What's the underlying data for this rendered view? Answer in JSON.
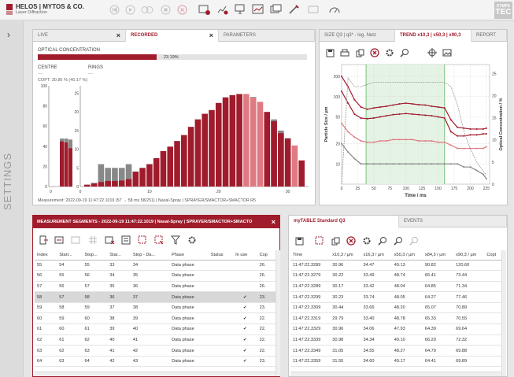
{
  "app": {
    "brand": "HELOS | MYTOS & CO.",
    "subtitle": "Laser Diffraction",
    "corner_top": "SYMPA",
    "corner_big": "TEC"
  },
  "sidebar": {
    "label": "SETTINGS"
  },
  "left_panel": {
    "tabs": [
      {
        "label": "LIVE"
      },
      {
        "label": "RECORDED"
      },
      {
        "label": "PARAMETERS"
      }
    ],
    "optical_label": "OPTICAL CONCENTRATION",
    "optical_value": "23.19%",
    "optical_fraction": 0.2319,
    "centre_label": "CENTRE",
    "centre_value": "---",
    "rings_label": "RINGS",
    "rings_value": "---",
    "copt_label": "COPT: 30.86 % (40.17 %)",
    "measurement": "Measurement: 2022-09-19 11:47:22.1019 (57 → 58 ms 58/251) | Nasal-Spray | SPRAYER/SMACTOR+SMACTOR R5"
  },
  "detector_chart": {
    "left": {
      "yticks": [
        "100",
        "80",
        "60",
        "40",
        "20",
        "0"
      ],
      "xticks": [
        "0"
      ]
    },
    "main": {
      "yticks": [
        "25",
        "20",
        "15",
        "10",
        "5",
        "0"
      ],
      "xticks": [
        "0",
        "10",
        "20",
        "30"
      ]
    }
  },
  "chart_data": [
    {
      "type": "bar",
      "name": "ring-signal",
      "categories": [
        1,
        2,
        3,
        4,
        5,
        6,
        7,
        8,
        9,
        10,
        11,
        12,
        13,
        14,
        15,
        16,
        17,
        18,
        19,
        20,
        21,
        22,
        23,
        24,
        25,
        26,
        27,
        28,
        29,
        30,
        31,
        32
      ],
      "values": [
        0.5,
        0.8,
        1.2,
        1.5,
        1.5,
        1.6,
        2,
        4,
        5,
        6,
        7.6,
        9.5,
        10.7,
        12.2,
        13.8,
        16,
        18,
        19.5,
        20.5,
        22.4,
        23.9,
        24.5,
        24.8,
        24.8,
        23.8,
        22.7,
        20,
        17.5,
        14.3,
        12.8,
        11,
        7
      ],
      "grey_values": [
        0.5,
        1,
        6,
        5,
        5,
        5,
        6,
        4,
        5,
        6,
        6,
        7,
        9,
        10,
        12,
        14,
        16,
        18,
        20,
        21,
        22,
        23,
        24,
        24,
        24,
        22,
        20,
        18,
        15,
        13,
        11,
        7
      ],
      "ylim": [
        0,
        27
      ],
      "xlim": [
        0,
        33
      ]
    },
    {
      "type": "bar",
      "name": "centre-signal",
      "categories": [
        1,
        2,
        3
      ],
      "values": [
        47,
        46,
        40
      ],
      "grey_values": [
        50,
        50,
        49
      ],
      "ylim": [
        0,
        105
      ]
    },
    {
      "type": "line",
      "name": "trend",
      "xlabel": "Time / ms",
      "ylabel": "Particle Size / µm",
      "y2label": "Optical Concentration / %",
      "xticks": [
        0,
        25,
        50,
        75,
        100,
        125,
        150,
        175,
        200,
        225
      ],
      "yticks": [
        200,
        100,
        50,
        20,
        10
      ],
      "y2ticks": [
        0,
        5,
        10,
        15,
        20,
        25
      ],
      "x": [
        0,
        10,
        20,
        30,
        40,
        50,
        60,
        70,
        80,
        90,
        100,
        110,
        120,
        130,
        140,
        150,
        160,
        170,
        180,
        190,
        200,
        210,
        220,
        225
      ],
      "series": [
        {
          "values": [
            200,
            140,
            90,
            70,
            65,
            68,
            70,
            72,
            75,
            78,
            80,
            78,
            76,
            75,
            72,
            70,
            68,
            45,
            35,
            34,
            33,
            33,
            33,
            34
          ]
        },
        {
          "values": [
            120,
            80,
            55,
            48,
            47,
            48,
            50,
            52,
            54,
            55,
            56,
            55,
            54,
            53,
            52,
            50,
            48,
            30,
            26,
            26,
            27,
            27,
            28,
            28
          ]
        },
        {
          "values": [
            40,
            30,
            25,
            22,
            21,
            21,
            22,
            22,
            23,
            23,
            23,
            23,
            22,
            22,
            22,
            21,
            21,
            19,
            17,
            17,
            17,
            17,
            17,
            18
          ]
        },
        {
          "values": [
            20,
            15,
            12,
            10,
            10,
            10,
            10,
            10,
            10,
            10,
            10,
            10,
            10,
            10,
            10,
            10,
            10,
            10,
            10,
            9,
            9,
            8,
            7,
            6
          ]
        }
      ],
      "series_y2": [
        {
          "values": [
            0,
            24,
            22,
            22,
            22.5,
            23,
            23,
            23,
            23,
            23,
            23,
            23,
            23,
            23,
            23,
            23,
            23,
            22,
            18,
            12,
            8,
            5,
            3,
            2
          ]
        }
      ],
      "xlim": [
        0,
        230
      ]
    }
  ],
  "right_top": {
    "tabs": [
      {
        "label": "SIZE Q3 | q3* - log. Netz"
      },
      {
        "label": "TREND x10,3 | x50,3 | x90,3"
      },
      {
        "label": "REPORT"
      }
    ]
  },
  "segments": {
    "title": "MEASUREMENT SEGMENTS - 2022-09-19 11:47:22.1019 | Nasal-Spray | SPRAYER/SMACTOR+SMACTO",
    "columns": [
      "Index",
      "Start...",
      "Stop...",
      "Star...",
      "Stop - Da...",
      "Phase",
      "Status",
      "In use",
      "Cop"
    ],
    "rows": [
      [
        "55",
        "54",
        "55",
        "33",
        "34",
        "Data phase",
        "",
        "",
        "26."
      ],
      [
        "56",
        "55",
        "56",
        "34",
        "35",
        "Data phase",
        "",
        "",
        "26."
      ],
      [
        "57",
        "56",
        "57",
        "35",
        "36",
        "Data phase",
        "",
        "",
        "26."
      ],
      [
        "58",
        "57",
        "58",
        "36",
        "37",
        "Data phase",
        "",
        "✔",
        "23."
      ],
      [
        "59",
        "58",
        "59",
        "37",
        "38",
        "Data phase",
        "",
        "✔",
        "23."
      ],
      [
        "60",
        "59",
        "60",
        "38",
        "39",
        "Data phase",
        "",
        "✔",
        "22."
      ],
      [
        "61",
        "60",
        "61",
        "39",
        "40",
        "Data phase",
        "",
        "✔",
        "22."
      ],
      [
        "62",
        "61",
        "62",
        "40",
        "41",
        "Data phase",
        "",
        "✔",
        "22."
      ],
      [
        "63",
        "62",
        "63",
        "41",
        "42",
        "Data phase",
        "",
        "✔",
        "22."
      ],
      [
        "64",
        "63",
        "64",
        "42",
        "43",
        "Data phase",
        "",
        "✔",
        "23."
      ]
    ]
  },
  "mytable": {
    "tabs": [
      {
        "label": "myTABLE Standard Q3"
      },
      {
        "label": "EVENTS"
      }
    ],
    "columns": [
      "Time",
      "x10,3 / µm",
      "x16,3 / µm",
      "x50,3 / µm",
      "x84,3 / µm",
      "x90,3 / µm",
      "Copt"
    ],
    "rows": [
      [
        "11:47:22.3289",
        "30.96",
        "34.47",
        "49.13",
        "90.82",
        "120.60"
      ],
      [
        "11:47:22.3279",
        "30.22",
        "33.49",
        "48.74",
        "66.41",
        "73.44"
      ],
      [
        "11:47:22.3289",
        "30.17",
        "33.42",
        "48.04",
        "64.85",
        "71.34"
      ],
      [
        "11:47:22.3299",
        "30.23",
        "33.74",
        "48.05",
        "64.27",
        "77.46"
      ],
      [
        "11:47:22.3309",
        "30.44",
        "33.66",
        "48.20",
        "65.07",
        "70.89"
      ],
      [
        "11:47:22.3319",
        "29.79",
        "33.40",
        "48.78",
        "65.33",
        "70.55"
      ],
      [
        "11:47:22.3329",
        "30.96",
        "34.06",
        "47.93",
        "64.39",
        "69.64"
      ],
      [
        "11:47:22.3339",
        "30.98",
        "34.34",
        "49.10",
        "66.20",
        "72.32"
      ],
      [
        "11:47:22.3349",
        "31.05",
        "34.55",
        "48.27",
        "64.79",
        "69.88"
      ],
      [
        "11:47:22.3359",
        "31.55",
        "34.60",
        "49.17",
        "64.41",
        "69.89"
      ]
    ]
  },
  "colors": {
    "accent": "#a01c2c",
    "pink": "#e07a82",
    "grey": "#888888"
  }
}
